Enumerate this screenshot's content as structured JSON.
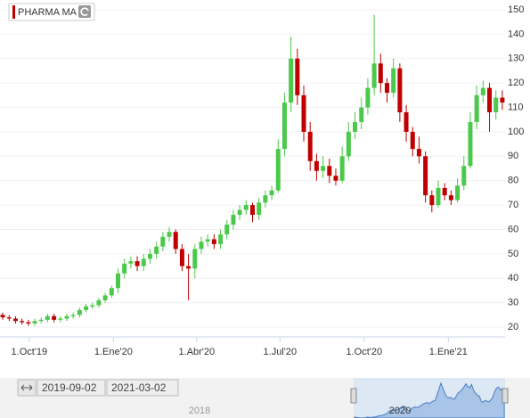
{
  "chart_data": {
    "type": "candlestick",
    "x": [
      "2019-09-02",
      "2019-09-09",
      "2019-09-16",
      "2019-09-23",
      "2019-09-30",
      "2019-10-07",
      "2019-10-14",
      "2019-10-21",
      "2019-10-28",
      "2019-11-04",
      "2019-11-11",
      "2019-11-18",
      "2019-11-25",
      "2019-12-02",
      "2019-12-09",
      "2019-12-16",
      "2019-12-23",
      "2019-12-30",
      "2020-01-06",
      "2020-01-13",
      "2020-01-20",
      "2020-01-27",
      "2020-02-03",
      "2020-02-10",
      "2020-02-17",
      "2020-02-24",
      "2020-03-02",
      "2020-03-09",
      "2020-03-16",
      "2020-03-23",
      "2020-03-30",
      "2020-04-06",
      "2020-04-13",
      "2020-04-20",
      "2020-04-27",
      "2020-05-04",
      "2020-05-11",
      "2020-05-18",
      "2020-05-25",
      "2020-06-01",
      "2020-06-08",
      "2020-06-15",
      "2020-06-22",
      "2020-06-29",
      "2020-07-06",
      "2020-07-13",
      "2020-07-20",
      "2020-07-27",
      "2020-08-03",
      "2020-08-10",
      "2020-08-17",
      "2020-08-24",
      "2020-08-31",
      "2020-09-07",
      "2020-09-14",
      "2020-09-21",
      "2020-09-28",
      "2020-10-05",
      "2020-10-12",
      "2020-10-19",
      "2020-10-26",
      "2020-11-02",
      "2020-11-09",
      "2020-11-16",
      "2020-11-23",
      "2020-11-30",
      "2020-12-07",
      "2020-12-14",
      "2020-12-21",
      "2020-12-28",
      "2021-01-04",
      "2021-01-11",
      "2021-01-18",
      "2021-01-25",
      "2021-02-01",
      "2021-02-08",
      "2021-02-15",
      "2021-02-22",
      "2021-03-01"
    ],
    "series": [
      {
        "name": "PHARMA MA",
        "color": "#c00000",
        "open": [
          25,
          24,
          23.5,
          22.5,
          22,
          21.5,
          22.5,
          23,
          24.5,
          23,
          23.5,
          24.5,
          25,
          27,
          28.5,
          29,
          31,
          33,
          36,
          42,
          46,
          47,
          45,
          48,
          50,
          53,
          57,
          59,
          52,
          45,
          44,
          52,
          55,
          56,
          54,
          58,
          62,
          66,
          68,
          70,
          66,
          71,
          74,
          76,
          93,
          112,
          130,
          115,
          100,
          88,
          84,
          86,
          82,
          80,
          90,
          100,
          104,
          110,
          118,
          128,
          120,
          116,
          126,
          108,
          100,
          93,
          90,
          74,
          70,
          77,
          74,
          72,
          78,
          86,
          104,
          115,
          118,
          108,
          114
        ],
        "high": [
          26,
          25,
          24.5,
          23.5,
          23,
          23.5,
          24,
          25.5,
          25.5,
          24.5,
          25.5,
          26,
          28,
          29.5,
          30,
          32,
          34,
          37,
          44,
          48,
          49,
          49,
          50,
          52,
          55,
          59,
          61,
          60,
          54,
          50,
          54,
          57,
          58,
          58,
          60,
          64,
          68,
          70,
          72,
          71,
          73,
          76,
          78,
          97,
          116,
          139,
          134,
          119,
          104,
          91,
          90,
          89,
          85,
          94,
          104,
          108,
          114,
          122,
          148,
          132,
          122,
          130,
          128,
          111,
          102,
          98,
          92,
          76,
          80,
          79,
          76,
          81,
          90,
          108,
          119,
          121,
          120,
          117,
          117
        ],
        "low": [
          23,
          22.5,
          21.5,
          21,
          20.5,
          20.5,
          21.5,
          22,
          22,
          22,
          22.5,
          23.5,
          24,
          26,
          27.5,
          28,
          30,
          32,
          34,
          40,
          44,
          43,
          43,
          46,
          48,
          51,
          55,
          50,
          43,
          31,
          40,
          50,
          53,
          52,
          52,
          56,
          60,
          64,
          66,
          63,
          64,
          69,
          72,
          75,
          90,
          108,
          111,
          96,
          84,
          80,
          81,
          79,
          78,
          79,
          88,
          97,
          101,
          107,
          115,
          116,
          112,
          114,
          104,
          96,
          90,
          87,
          71,
          67,
          69,
          72,
          70,
          71,
          76,
          85,
          101,
          112,
          100,
          105,
          109
        ],
        "close": [
          24,
          23.5,
          22.5,
          22,
          21.5,
          22.5,
          23,
          24.5,
          23,
          23.5,
          24.5,
          25,
          27,
          28.5,
          29,
          31,
          33,
          36,
          42,
          46,
          47,
          45,
          48,
          50,
          53,
          57,
          59,
          52,
          45,
          44,
          52,
          55,
          56,
          54,
          58,
          62,
          66,
          68,
          70,
          66,
          71,
          74,
          76,
          93,
          112,
          130,
          115,
          100,
          88,
          84,
          86,
          82,
          80,
          90,
          100,
          104,
          110,
          118,
          128,
          120,
          116,
          126,
          108,
          100,
          93,
          90,
          74,
          70,
          77,
          74,
          72,
          78,
          86,
          104,
          115,
          118,
          108,
          114,
          112
        ]
      }
    ],
    "up_color": "#4cc94c",
    "down_color": "#c00000",
    "xlim": [
      "2019-08-30",
      "2021-03-04"
    ],
    "xticks": [
      {
        "value": "2019-10-01",
        "label": "1.Oct'19"
      },
      {
        "value": "2020-01-01",
        "label": "1.Ene'20"
      },
      {
        "value": "2020-04-01",
        "label": "1.Abr'20"
      },
      {
        "value": "2020-07-01",
        "label": "1.Jul'20"
      },
      {
        "value": "2020-10-01",
        "label": "1.Oct'20"
      },
      {
        "value": "2021-01-01",
        "label": "1.Ene'21"
      }
    ],
    "ylim": [
      16,
      154
    ],
    "yticks": [
      20,
      30,
      40,
      50,
      60,
      70,
      80,
      90,
      100,
      110,
      120,
      130,
      140,
      150
    ],
    "grid": true
  },
  "navigator": {
    "from": "2019-09-02",
    "to": "2021-03-02",
    "labels": [
      "2018",
      "2020"
    ]
  }
}
